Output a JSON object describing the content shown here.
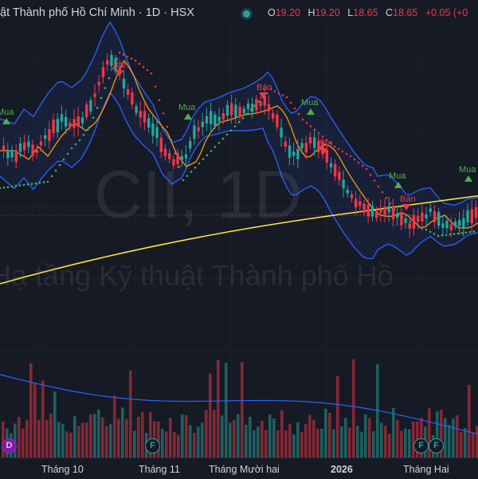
{
  "header": {
    "title": "ật Thành phố Hồ Chí Minh · 1D · HSX",
    "status_color": "#26a69a",
    "ohlc": [
      {
        "key": "O",
        "value": "19.20"
      },
      {
        "key": "H",
        "value": "19.20"
      },
      {
        "key": "L",
        "value": "18.65"
      },
      {
        "key": "C",
        "value": "18.65"
      }
    ],
    "change": "+0.05 (+0"
  },
  "watermark": {
    "symbol": "CII, 1D",
    "name": "Hạ tầng Kỹ thuật Thành phố Hồ"
  },
  "signals": {
    "buy_label": "Mua",
    "sell_label": "Bán"
  },
  "x_axis": {
    "labels": [
      "Tháng 10",
      "Tháng 11",
      "Tháng Mười hai",
      "2026",
      "Tháng Hai"
    ]
  },
  "event_badges": [
    {
      "letter": "D",
      "kind": "dividend"
    },
    {
      "letter": "F",
      "kind": "financial"
    },
    {
      "letter": "F",
      "kind": "financial"
    },
    {
      "letter": "F",
      "kind": "financial"
    }
  ],
  "colors": {
    "up": "#26a69a",
    "down": "#f23645",
    "bollinger": "#2962ff",
    "ma_fast": "#ff9800",
    "ma_slow": "#ffeb3b",
    "background": "#161a25"
  }
}
